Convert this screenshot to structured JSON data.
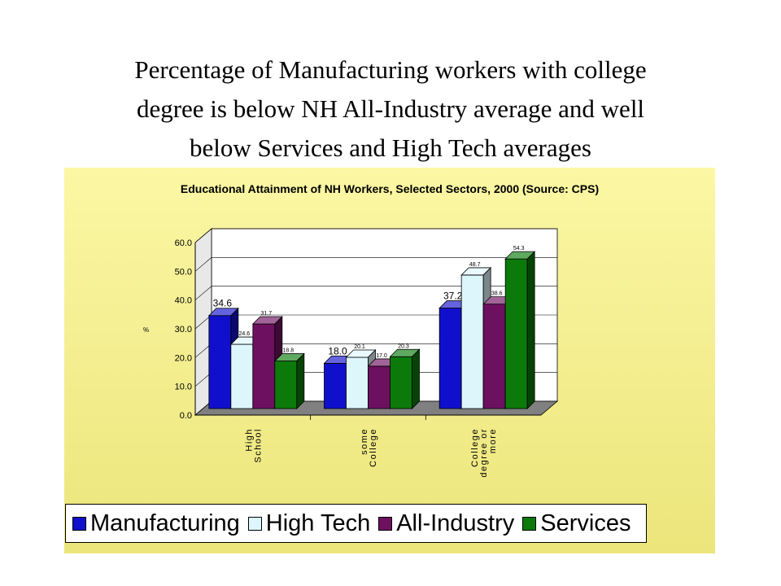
{
  "slide": {
    "title_lines": [
      "Percentage of Manufacturing workers with college",
      "degree is below NH All-Industry average and well",
      "below Services and High Tech averages"
    ]
  },
  "chart_data": {
    "type": "bar",
    "title": "Educational Attainment of NH Workers, Selected Sectors, 2000 (Source: CPS)",
    "xlabel": "",
    "ylabel": "%",
    "ylim": [
      0,
      60
    ],
    "yticks": [
      "0.0",
      "10.0",
      "20.0",
      "30.0",
      "40.0",
      "50.0",
      "60.0"
    ],
    "categories": [
      [
        "High",
        "School"
      ],
      [
        "some",
        "College"
      ],
      [
        "College",
        "degree or",
        "more"
      ]
    ],
    "series": [
      {
        "name": "Manufacturing",
        "values": [
          34.6,
          18.0,
          37.2
        ],
        "labels": [
          "34.6",
          "18.0",
          "37.2"
        ],
        "color": "#1010cc"
      },
      {
        "name": "High Tech",
        "values": [
          24.6,
          20.1,
          48.7
        ],
        "labels": [
          "24.6",
          "20.1",
          "48.7"
        ],
        "color": "#ddf6fc"
      },
      {
        "name": "All-Industry",
        "values": [
          31.7,
          17.0,
          38.6
        ],
        "labels": [
          "31.7",
          "17.0",
          "38.6"
        ],
        "color": "#6e1060"
      },
      {
        "name": "Services",
        "values": [
          18.8,
          20.3,
          54.3
        ],
        "labels": [
          "18.8",
          "20.3",
          "54.3"
        ],
        "color": "#0b7a0b"
      }
    ],
    "grid": true,
    "legend_position": "bottom"
  }
}
